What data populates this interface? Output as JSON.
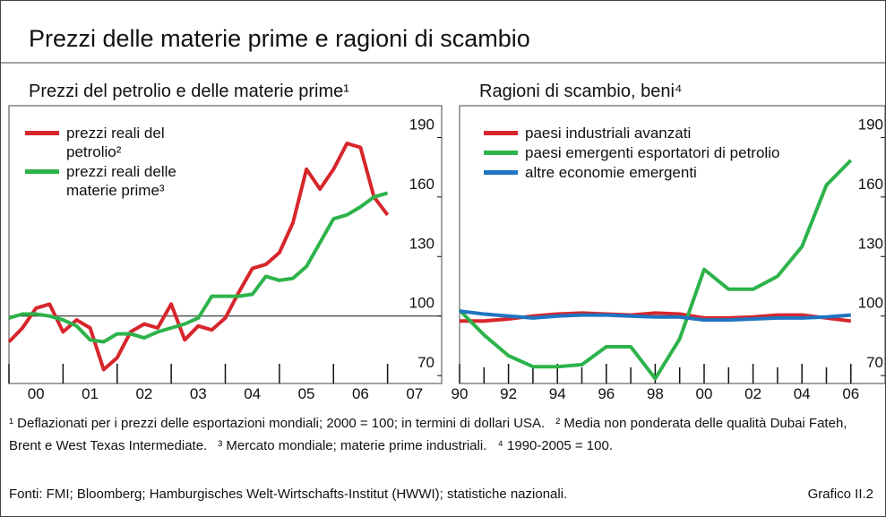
{
  "title": "Prezzi delle materie prime e ragioni di scambio",
  "chart_data": [
    {
      "type": "line",
      "title": "Prezzi del petrolio e delle materie prime¹",
      "x": [
        2000,
        2000.25,
        2000.5,
        2000.75,
        2001,
        2001.25,
        2001.5,
        2001.75,
        2002,
        2002.25,
        2002.5,
        2002.75,
        2003,
        2003.25,
        2003.5,
        2003.75,
        2004,
        2004.25,
        2004.5,
        2004.75,
        2005,
        2005.25,
        2005.5,
        2005.75,
        2006,
        2006.25,
        2006.5,
        2006.75,
        2007
      ],
      "series": [
        {
          "name": "prezzi reali del petrolio²",
          "color": "#d7262b",
          "values": [
            87,
            94,
            104,
            106,
            92,
            98,
            94,
            73,
            79,
            92,
            96,
            94,
            106,
            88,
            95,
            93,
            99,
            112,
            124,
            126,
            132,
            147,
            174,
            164,
            174,
            187,
            185,
            160,
            151
          ]
        },
        {
          "name": "prezzi reali delle materie prime³",
          "color": "#2db34a",
          "values": [
            99,
            101,
            101,
            100,
            98,
            95,
            88,
            87,
            91,
            91,
            89,
            92,
            94,
            96,
            99,
            110,
            110,
            110,
            111,
            120,
            118,
            119,
            125,
            137,
            149,
            151,
            155,
            160,
            162
          ]
        }
      ],
      "xlim": [
        2000,
        2008
      ],
      "xticks": [
        {
          "value": 2000,
          "label": "00"
        },
        {
          "value": 2001,
          "label": "01"
        },
        {
          "value": 2002,
          "label": "02"
        },
        {
          "value": 2003,
          "label": "03"
        },
        {
          "value": 2004,
          "label": "04"
        },
        {
          "value": 2005,
          "label": "05"
        },
        {
          "value": 2006,
          "label": "06"
        },
        {
          "value": 2007,
          "label": "07"
        }
      ],
      "ylim": [
        66,
        206
      ],
      "yticks": [
        70,
        100,
        130,
        160,
        190
      ],
      "hline": 100
    },
    {
      "type": "line",
      "title": "Ragioni di scambio, beni⁴",
      "x": [
        1990,
        1991,
        1992,
        1993,
        1994,
        1995,
        1996,
        1997,
        1998,
        1999,
        2000,
        2001,
        2002,
        2003,
        2004,
        2005,
        2006
      ],
      "series": [
        {
          "name": "paesi industriali avanzati",
          "color": "#d7262b",
          "values": [
            97.5,
            97.5,
            98.5,
            100,
            101,
            101.5,
            101,
            100.5,
            101.5,
            101,
            99,
            99,
            99.5,
            100.5,
            100.5,
            99,
            97.5
          ]
        },
        {
          "name": "paesi emergenti esportatori di petrolio",
          "color": "#2db34a",
          "values": [
            103,
            90.5,
            80,
            74.5,
            74.5,
            75.5,
            84.5,
            84.5,
            68.5,
            88.5,
            123.5,
            113.5,
            113.5,
            120,
            135,
            166,
            178.5
          ]
        },
        {
          "name": "altre economie emergenti",
          "color": "#1f74c2",
          "values": [
            102.5,
            101,
            100,
            99,
            100,
            100.5,
            100.5,
            100,
            99.5,
            99.5,
            98,
            98,
            98.5,
            99,
            99,
            99.5,
            100.5
          ]
        }
      ],
      "xlim": [
        1990,
        2007.4
      ],
      "xticks": [
        {
          "value": 1990,
          "label": "90"
        },
        {
          "value": 1992,
          "label": "92"
        },
        {
          "value": 1994,
          "label": "94"
        },
        {
          "value": 1996,
          "label": "96"
        },
        {
          "value": 1998,
          "label": "98"
        },
        {
          "value": 2000,
          "label": "00"
        },
        {
          "value": 2002,
          "label": "02"
        },
        {
          "value": 2004,
          "label": "04"
        },
        {
          "value": 2006,
          "label": "06"
        }
      ],
      "xminor": [
        1991,
        1993,
        1995,
        1997,
        1999,
        2001,
        2003,
        2005
      ],
      "ylim": [
        66,
        206
      ],
      "yticks": [
        70,
        100,
        130,
        160,
        190
      ]
    }
  ],
  "notes": [
    "¹ Deflazionati per i prezzi delle esportazioni mondiali; 2000 = 100; in termini di dollari USA.",
    "² Media non ponderata delle qualità Dubai Fateh, Brent e West Texas Intermediate.",
    "³ Mercato mondiale; materie prime industriali.",
    "⁴ 1990-2005 = 100."
  ],
  "sources": "Fonti: FMI; Bloomberg; Hamburgisches Welt-Wirtschafts-Institut (HWWI); statistiche nazionali.",
  "chart_label": "Grafico II.2"
}
